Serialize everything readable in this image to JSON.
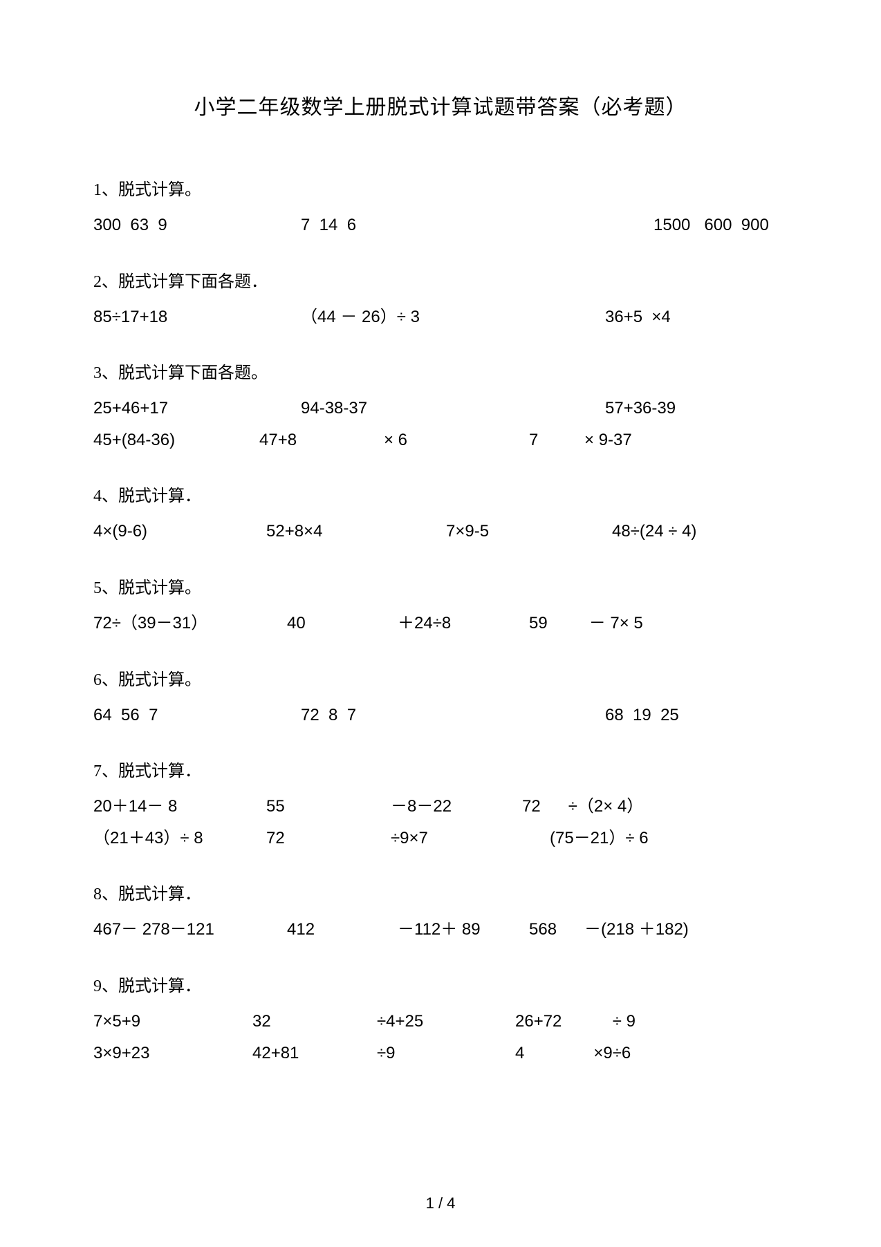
{
  "title": "小学二年级数学上册脱式计算试题带答案（必考题）",
  "page_number": "1 / 4",
  "colors": {
    "text": "#000000",
    "background": "#ffffff"
  },
  "typography": {
    "body_fontsize": 24,
    "title_fontsize": 30,
    "font_family": "SimSun"
  },
  "sections": [
    {
      "heading": "1、脱式计算。",
      "rows": [
        [
          "300  63  9",
          "7  14  6",
          "",
          "1500   600  900"
        ]
      ]
    },
    {
      "heading": "2、脱式计算下面各题．",
      "rows": [
        [
          "85÷17+18",
          "（44 － 26）÷ 3",
          "",
          "36+5  ×4"
        ]
      ]
    },
    {
      "heading": "3、脱式计算下面各题。",
      "rows": [
        [
          "25+46+17",
          "94-38-37",
          "",
          "57+36-39"
        ],
        [
          "45+(84-36)",
          "47+8",
          "× 6",
          "7          × 9-37"
        ]
      ]
    },
    {
      "heading": "4、脱式计算．",
      "rows": [
        [
          "4×(9-6)",
          "52+8×4",
          "7×9-5",
          "48÷(24 ÷ 4)"
        ]
      ]
    },
    {
      "heading": "5、脱式计算。",
      "rows": [
        [
          "72÷（39－31）",
          "40",
          "＋24÷8",
          "59         － 7× 5"
        ]
      ]
    },
    {
      "heading": "6、脱式计算。",
      "rows": [
        [
          "64  56  7",
          "72  8  7",
          "",
          "68  19  25"
        ]
      ]
    },
    {
      "heading": "7、脱式计算．",
      "rows": [
        [
          "20＋14－ 8",
          "55",
          "－8－22",
          "72      ÷（2× 4）"
        ],
        [
          "（21＋43）÷ 8",
          "72",
          "÷9×7",
          "(75－21）÷ 6"
        ]
      ]
    },
    {
      "heading": "8、脱式计算．",
      "rows": [
        [
          "467－ 278－121",
          "412",
          "－112＋ 89",
          "568      －(218 ＋182)"
        ]
      ]
    },
    {
      "heading": "9、脱式计算．",
      "rows": [
        [
          "7×5+9",
          "32",
          "÷4+25",
          "26+72           ÷ 9"
        ],
        [
          "3×9+23",
          "42+81",
          "÷9",
          "4               ×9÷6"
        ]
      ]
    }
  ]
}
